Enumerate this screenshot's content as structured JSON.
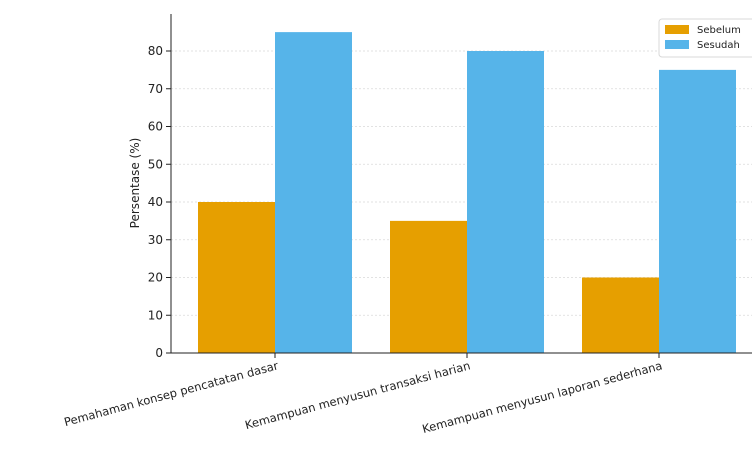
{
  "chart_data": {
    "type": "bar",
    "title": "",
    "xlabel": "",
    "ylabel": "Persentase (%)",
    "ylim": [
      0,
      89
    ],
    "yticks": [
      0,
      10,
      20,
      30,
      40,
      50,
      60,
      70,
      80
    ],
    "grid": true,
    "legend_position": "top-right",
    "categories": [
      "Pemahaman konsep pencatatan dasar",
      "Kemampuan menyusun transaksi harian",
      "Kemampuan menyusun laporan sederhana"
    ],
    "series": [
      {
        "name": "Sebelum",
        "color": "#E69F00",
        "values": [
          40,
          35,
          20
        ]
      },
      {
        "name": "Sesudah",
        "color": "#56B4E9",
        "values": [
          85,
          80,
          75
        ]
      }
    ]
  }
}
